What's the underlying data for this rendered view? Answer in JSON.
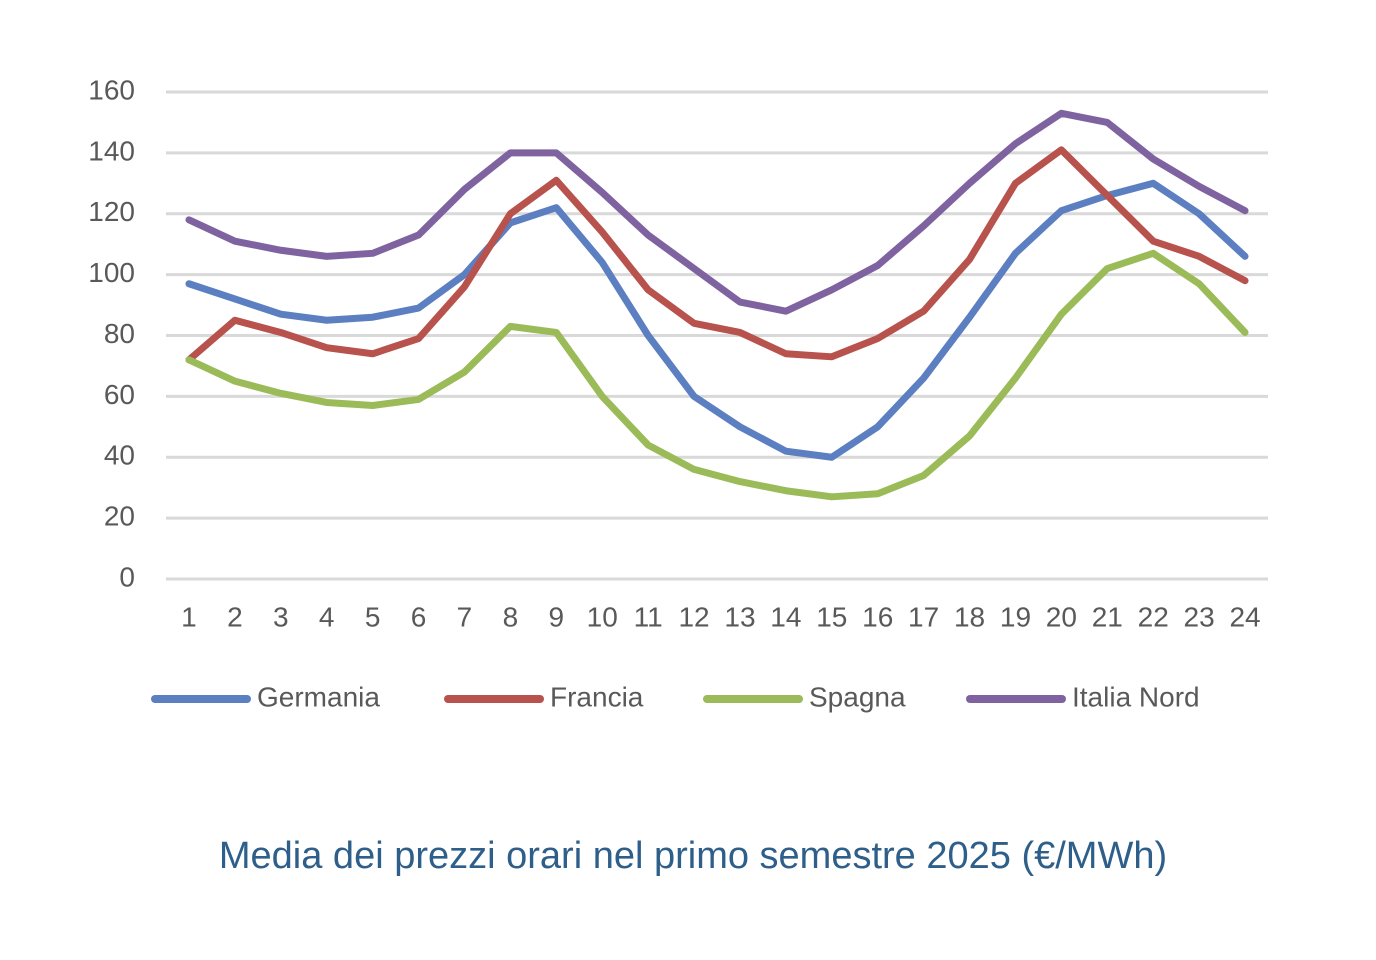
{
  "chart_data": {
    "type": "line",
    "title": "Media dei prezzi orari nel primo semestre 2025 (€/MWh)",
    "categories": [
      "1",
      "2",
      "3",
      "4",
      "5",
      "6",
      "7",
      "8",
      "9",
      "10",
      "11",
      "12",
      "13",
      "14",
      "15",
      "16",
      "17",
      "18",
      "19",
      "20",
      "21",
      "22",
      "23",
      "24"
    ],
    "series": [
      {
        "name": "Germania",
        "color": "#5b7fc1",
        "values": [
          97,
          92,
          87,
          85,
          86,
          89,
          100,
          117,
          122,
          104,
          80,
          60,
          50,
          42,
          40,
          50,
          66,
          86,
          107,
          121,
          126,
          130,
          120,
          106
        ]
      },
      {
        "name": "Francia",
        "color": "#b8524d",
        "values": [
          72,
          85,
          81,
          76,
          74,
          79,
          96,
          120,
          131,
          114,
          95,
          84,
          81,
          74,
          73,
          79,
          88,
          105,
          130,
          141,
          126,
          111,
          106,
          98
        ]
      },
      {
        "name": "Spagna",
        "color": "#9bbb59",
        "values": [
          72,
          65,
          61,
          58,
          57,
          59,
          68,
          83,
          81,
          60,
          44,
          36,
          32,
          29,
          27,
          28,
          34,
          47,
          66,
          87,
          102,
          107,
          97,
          81
        ]
      },
      {
        "name": "Italia Nord",
        "color": "#7e63a0",
        "values": [
          118,
          111,
          108,
          106,
          107,
          113,
          128,
          140,
          140,
          127,
          113,
          102,
          91,
          88,
          95,
          103,
          116,
          130,
          143,
          153,
          150,
          138,
          129,
          121
        ]
      }
    ],
    "ylim": [
      0,
      160
    ],
    "yticks": [
      0,
      20,
      40,
      60,
      80,
      100,
      120,
      140,
      160
    ],
    "grid": true,
    "legend": "bottom"
  }
}
